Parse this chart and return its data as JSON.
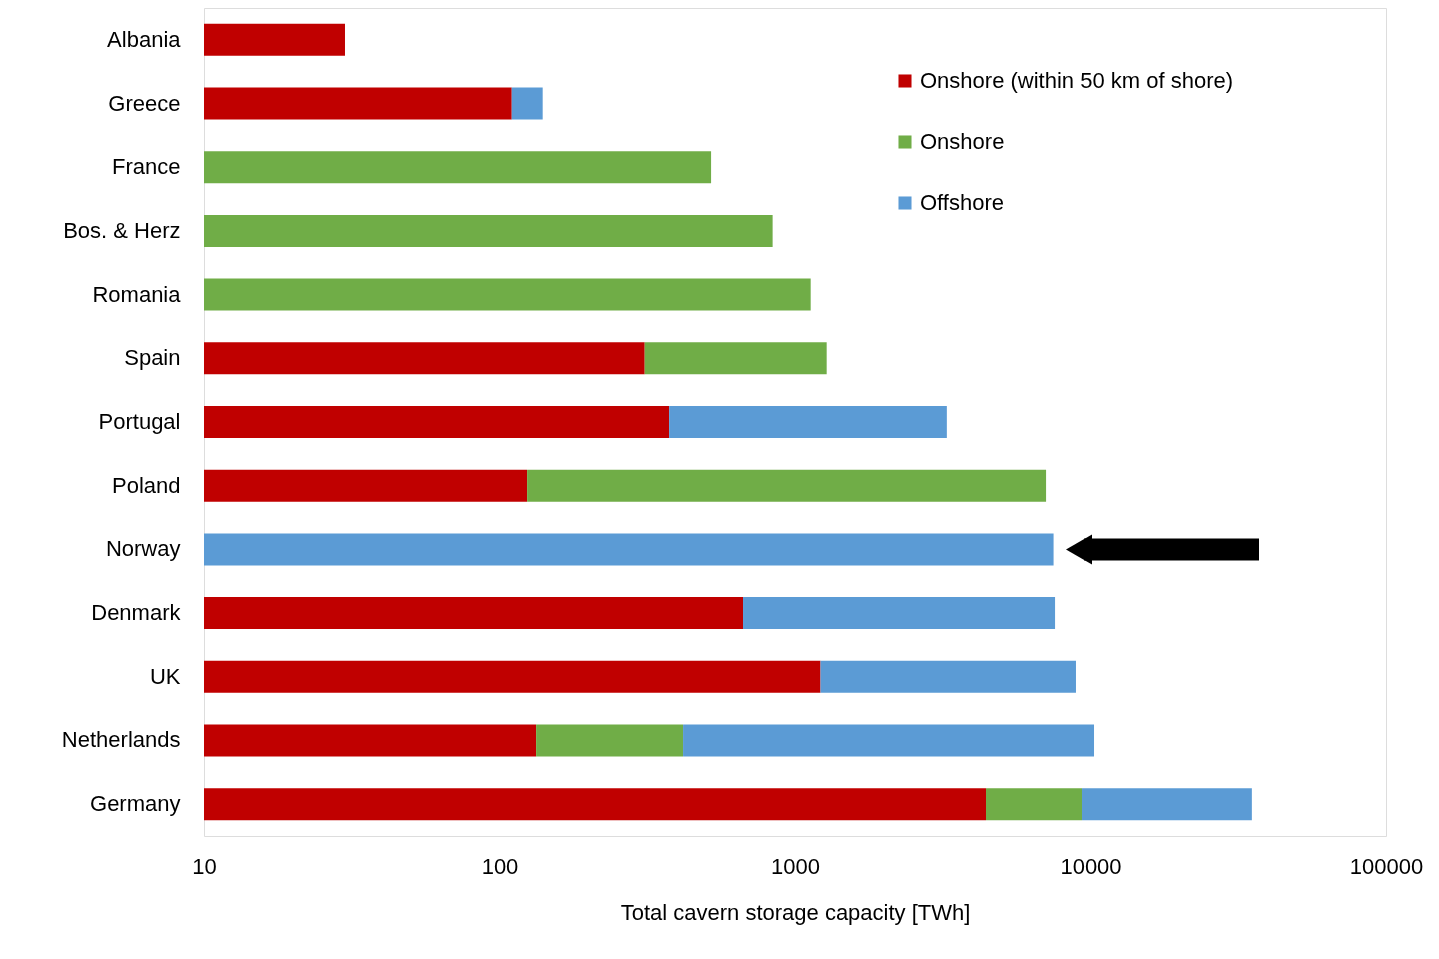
{
  "chart_data": {
    "type": "bar",
    "orientation": "horizontal",
    "stacked": true,
    "log": "x",
    "xlabel": "Total cavern storage capacity [TWh]",
    "categories": [
      "Albania",
      "Greece",
      "France",
      "Bos. & Herz",
      "Romania",
      "Spain",
      "Portugal",
      "Poland",
      "Norway",
      "Denmark",
      "UK",
      "Netherlands",
      "Germany"
    ],
    "series": [
      {
        "name": "Onshore (within 50 km of shore)",
        "color": "#c00000",
        "values": [
          30,
          110,
          null,
          null,
          null,
          310,
          375,
          124,
          null,
          667,
          1220,
          133,
          4430
        ]
      },
      {
        "name": "Onshore",
        "color": "#70ad47",
        "values": [
          null,
          null,
          520,
          840,
          1130,
          970,
          null,
          6950,
          null,
          null,
          null,
          285,
          4930
        ]
      },
      {
        "name": "Offshore",
        "color": "#5b9bd5",
        "values": [
          null,
          30,
          null,
          null,
          null,
          null,
          2890,
          null,
          7500,
          6920,
          7710,
          9860,
          25800
        ]
      }
    ],
    "xlim": [
      10,
      100000
    ],
    "xticks": [
      10,
      100,
      1000,
      10000,
      100000
    ],
    "legend": "top right",
    "grid": false
  }
}
